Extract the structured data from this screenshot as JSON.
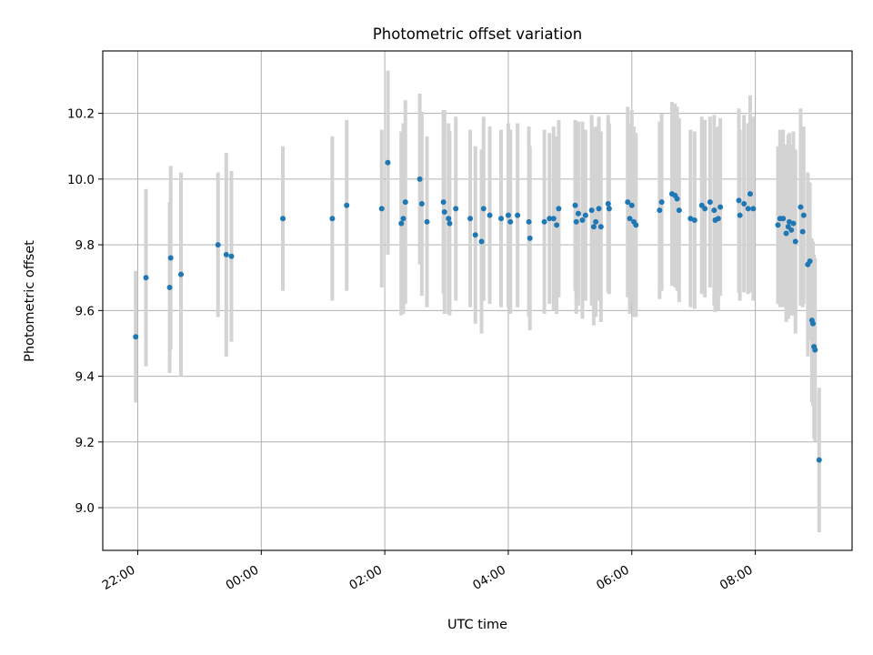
{
  "chart_data": {
    "type": "scatter",
    "title": "Photometric offset variation",
    "xlabel": "UTC time",
    "ylabel": "Photometric offset",
    "x_unit": "UTC time of day",
    "x_range": [
      "21:26",
      "09:34"
    ],
    "y_range": [
      8.87,
      10.39
    ],
    "grid": true,
    "x_ticks": [
      "22:00",
      "00:00",
      "02:00",
      "04:00",
      "06:00",
      "08:00"
    ],
    "y_ticks": [
      "9.0",
      "9.2",
      "9.4",
      "9.6",
      "9.8",
      "10.0",
      "10.2"
    ],
    "colors": {
      "marker": "#1f77b4",
      "errorbar": "#d3d3d3",
      "grid": "#b0b0b0"
    },
    "series": [
      {
        "columns": [
          "time",
          "offset",
          "err"
        ],
        "points": [
          [
            "21:58",
            9.52,
            0.2
          ],
          [
            "22:08",
            9.7,
            0.27
          ],
          [
            "22:31",
            9.67,
            0.26
          ],
          [
            "22:32",
            9.76,
            0.28
          ],
          [
            "22:42",
            9.71,
            0.31
          ],
          [
            "23:18",
            9.8,
            0.22
          ],
          [
            "23:26",
            9.77,
            0.31
          ],
          [
            "23:31",
            9.765,
            0.26
          ],
          [
            "00:21",
            9.88,
            0.22
          ],
          [
            "01:09",
            9.88,
            0.25
          ],
          [
            "01:23",
            9.92,
            0.26
          ],
          [
            "01:57",
            9.91,
            0.24
          ],
          [
            "02:03",
            10.05,
            0.28
          ],
          [
            "02:16",
            9.865,
            0.28
          ],
          [
            "02:18",
            9.88,
            0.29
          ],
          [
            "02:20",
            9.93,
            0.31
          ],
          [
            "02:34",
            10.0,
            0.26
          ],
          [
            "02:36",
            9.925,
            0.28
          ],
          [
            "02:41",
            9.87,
            0.26
          ],
          [
            "02:57",
            9.93,
            0.28
          ],
          [
            "02:58",
            9.9,
            0.31
          ],
          [
            "03:02",
            9.88,
            0.29
          ],
          [
            "03:03",
            9.865,
            0.28
          ],
          [
            "03:09",
            9.91,
            0.28
          ],
          [
            "03:23",
            9.88,
            0.27
          ],
          [
            "03:28",
            9.83,
            0.27
          ],
          [
            "03:34",
            9.81,
            0.28
          ],
          [
            "03:36",
            9.91,
            0.28
          ],
          [
            "03:42",
            9.89,
            0.27
          ],
          [
            "03:53",
            9.88,
            0.27
          ],
          [
            "04:00",
            9.89,
            0.28
          ],
          [
            "04:02",
            9.87,
            0.28
          ],
          [
            "04:09",
            9.89,
            0.28
          ],
          [
            "04:20",
            9.87,
            0.29
          ],
          [
            "04:21",
            9.82,
            0.28
          ],
          [
            "04:35",
            9.87,
            0.28
          ],
          [
            "04:40",
            9.88,
            0.26
          ],
          [
            "04:44",
            9.88,
            0.28
          ],
          [
            "04:47",
            9.86,
            0.27
          ],
          [
            "04:49",
            9.91,
            0.27
          ],
          [
            "05:05",
            9.92,
            0.26
          ],
          [
            "05:06",
            9.87,
            0.28
          ],
          [
            "05:08",
            9.895,
            0.28
          ],
          [
            "05:12",
            9.875,
            0.3
          ],
          [
            "05:15",
            9.89,
            0.26
          ],
          [
            "05:21",
            9.905,
            0.29
          ],
          [
            "05:23",
            9.855,
            0.3
          ],
          [
            "05:25",
            9.87,
            0.29
          ],
          [
            "05:28",
            9.91,
            0.28
          ],
          [
            "05:30",
            9.855,
            0.29
          ],
          [
            "05:37",
            9.925,
            0.27
          ],
          [
            "05:38",
            9.91,
            0.26
          ],
          [
            "05:56",
            9.93,
            0.29
          ],
          [
            "05:58",
            9.88,
            0.29
          ],
          [
            "06:00",
            9.92,
            0.29
          ],
          [
            "06:02",
            9.87,
            0.29
          ],
          [
            "06:04",
            9.86,
            0.28
          ],
          [
            "06:27",
            9.905,
            0.27
          ],
          [
            "06:29",
            9.93,
            0.27
          ],
          [
            "06:39",
            9.955,
            0.28
          ],
          [
            "06:42",
            9.95,
            0.28
          ],
          [
            "06:44",
            9.94,
            0.28
          ],
          [
            "06:46",
            9.905,
            0.28
          ],
          [
            "06:57",
            9.88,
            0.27
          ],
          [
            "07:01",
            9.875,
            0.27
          ],
          [
            "07:08",
            9.92,
            0.27
          ],
          [
            "07:11",
            9.91,
            0.27
          ],
          [
            "07:16",
            9.93,
            0.26
          ],
          [
            "07:20",
            9.905,
            0.29
          ],
          [
            "07:21",
            9.875,
            0.28
          ],
          [
            "07:24",
            9.88,
            0.28
          ],
          [
            "07:26",
            9.915,
            0.27
          ],
          [
            "07:44",
            9.935,
            0.28
          ],
          [
            "07:45",
            9.89,
            0.26
          ],
          [
            "07:49",
            9.925,
            0.27
          ],
          [
            "07:53",
            9.91,
            0.26
          ],
          [
            "07:55",
            9.955,
            0.3
          ],
          [
            "07:58",
            9.91,
            0.28
          ],
          [
            "08:22",
            9.86,
            0.24
          ],
          [
            "08:24",
            9.88,
            0.27
          ],
          [
            "08:27",
            9.88,
            0.27
          ],
          [
            "08:30",
            9.835,
            0.27
          ],
          [
            "08:32",
            9.855,
            0.28
          ],
          [
            "08:33",
            9.87,
            0.27
          ],
          [
            "08:35",
            9.845,
            0.26
          ],
          [
            "08:37",
            9.865,
            0.28
          ],
          [
            "08:39",
            9.81,
            0.28
          ],
          [
            "08:44",
            9.915,
            0.3
          ],
          [
            "08:46",
            9.84,
            0.23
          ],
          [
            "08:47",
            9.89,
            0.27
          ],
          [
            "08:51",
            9.74,
            0.28
          ],
          [
            "08:53",
            9.75,
            0.24
          ],
          [
            "08:55",
            9.57,
            0.25
          ],
          [
            "08:56",
            9.56,
            0.25
          ],
          [
            "08:57",
            9.49,
            0.28
          ],
          [
            "08:58",
            9.48,
            0.28
          ],
          [
            "09:02",
            9.145,
            0.22
          ]
        ]
      }
    ]
  }
}
